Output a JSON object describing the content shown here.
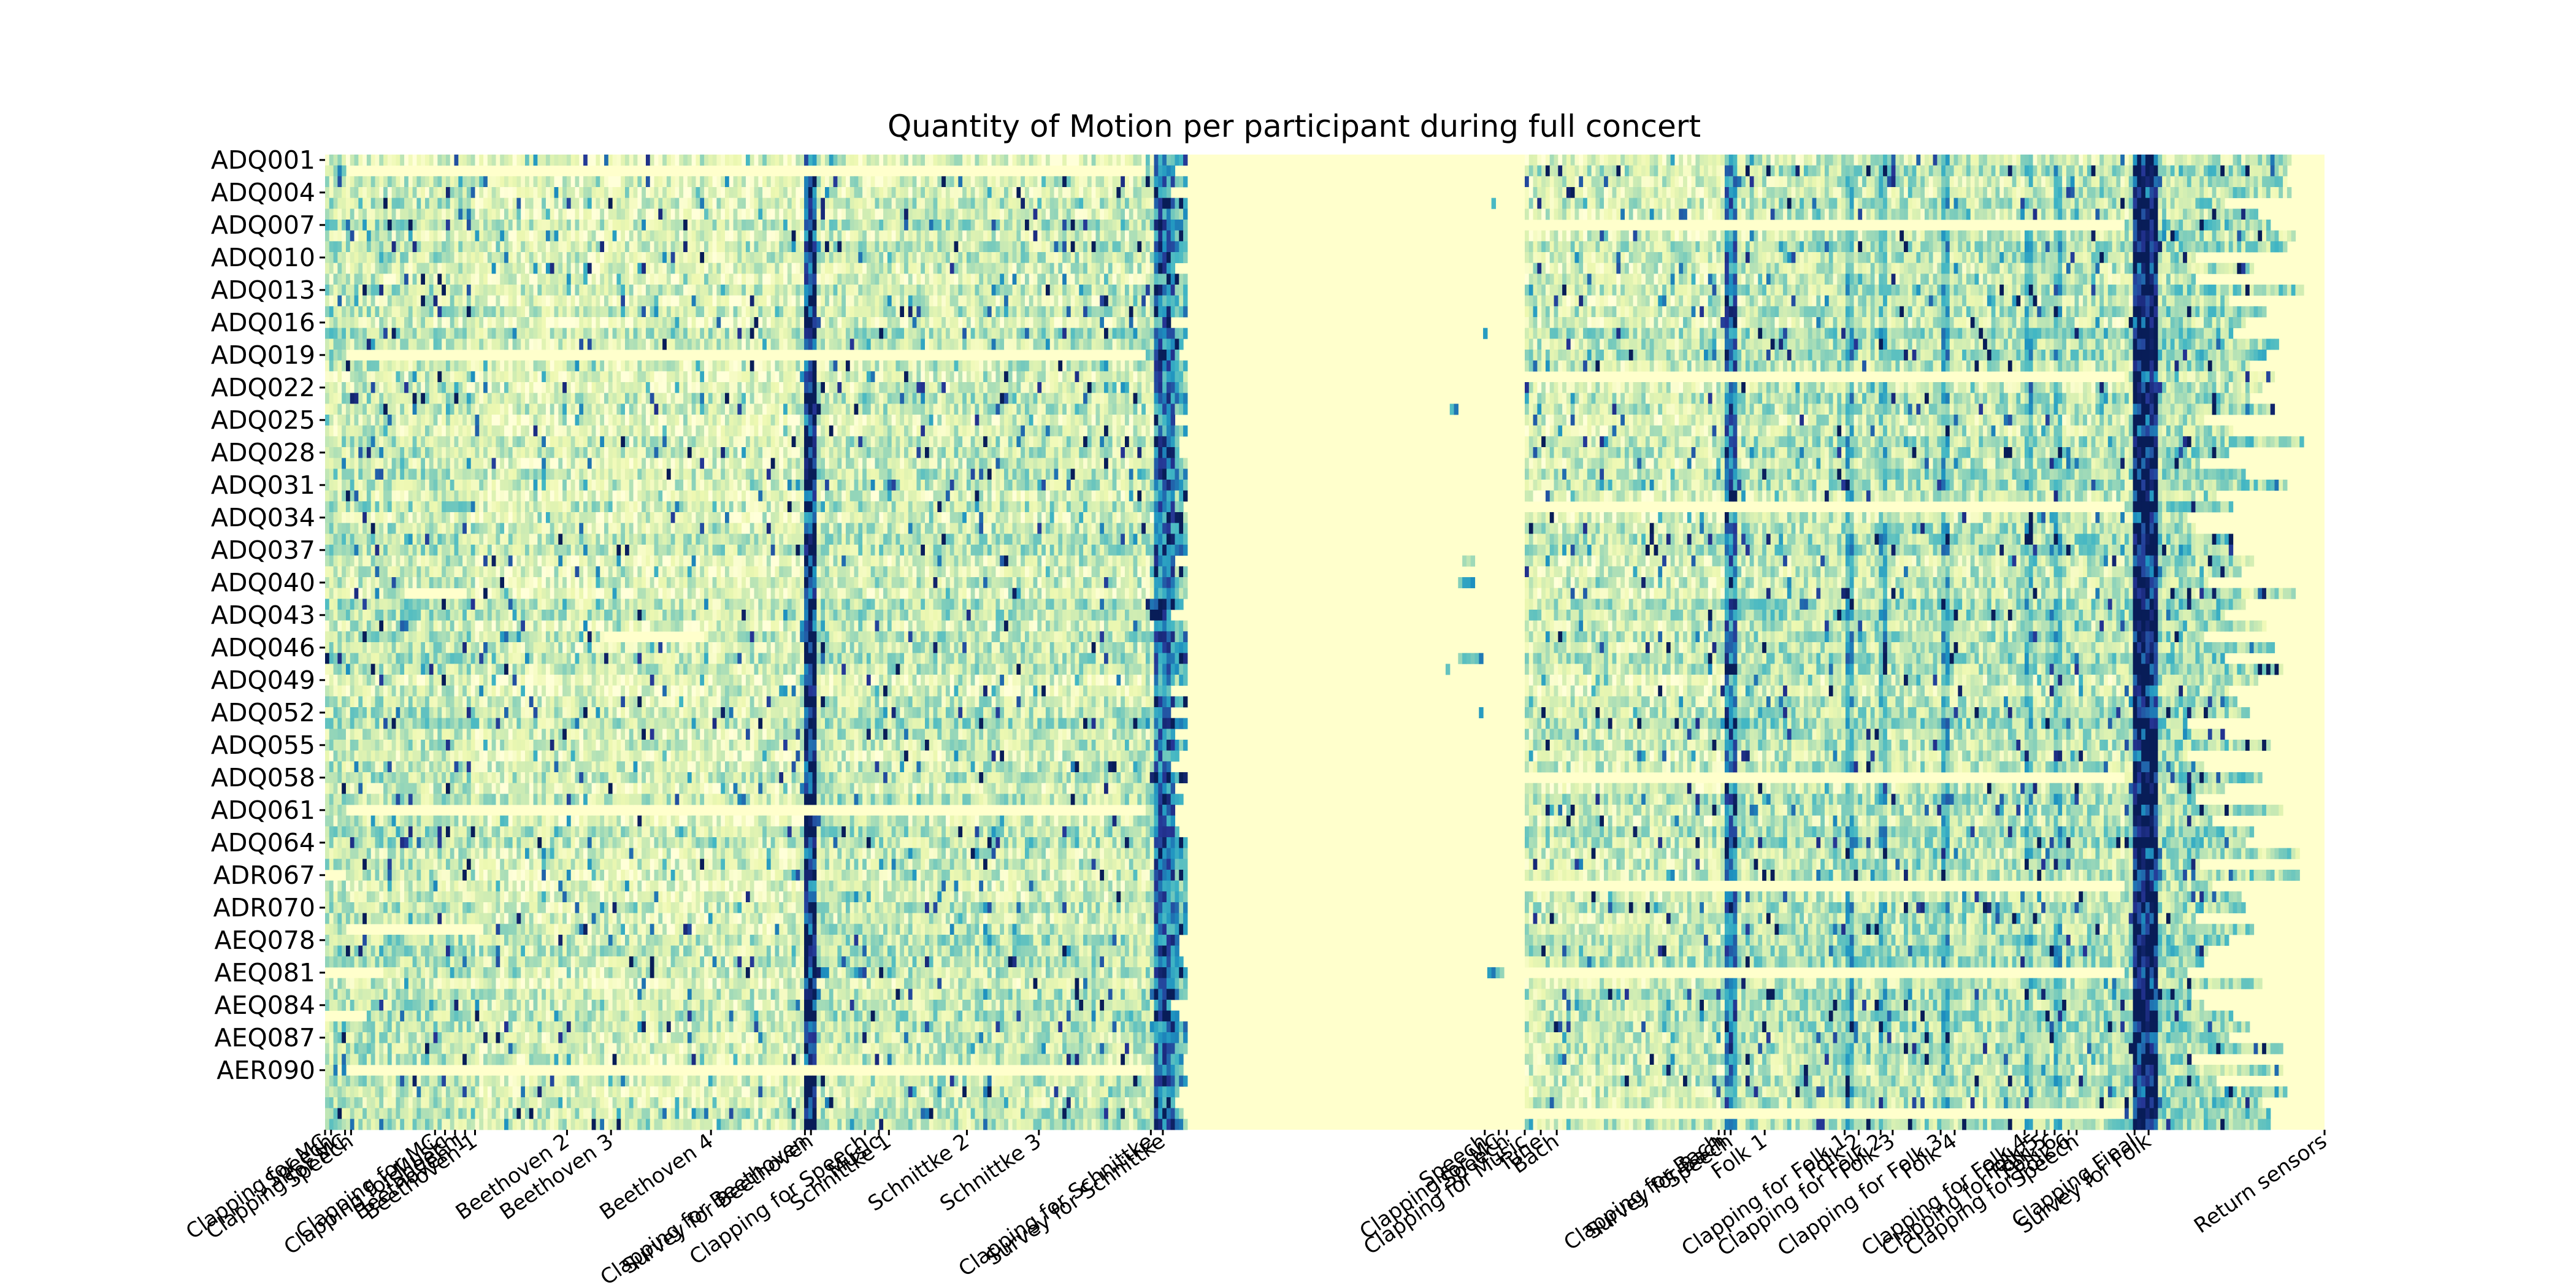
{
  "chart_data": {
    "type": "heatmap",
    "title": "Quantity of Motion per participant during full concert",
    "colormap": "YlGnBu",
    "colors": {
      "low": "#ffffd9",
      "mid": "#7fcdbb",
      "high": "#081d58",
      "missing": "#ffffcc"
    },
    "participant_count": 90,
    "y_tick_labels": [
      "ADQ001",
      "ADQ004",
      "ADQ007",
      "ADQ010",
      "ADQ013",
      "ADQ016",
      "ADQ019",
      "ADQ022",
      "ADQ025",
      "ADQ028",
      "ADQ031",
      "ADQ034",
      "ADQ037",
      "ADQ040",
      "ADQ043",
      "ADQ046",
      "ADQ049",
      "ADQ052",
      "ADQ055",
      "ADQ058",
      "ADQ061",
      "ADQ064",
      "ADR067",
      "ADR070",
      "AEQ078",
      "AEQ081",
      "AEQ084",
      "AEQ087",
      "AER090"
    ],
    "segments": [
      {
        "label": "Clapping for MC",
        "t": 0.0
      },
      {
        "label": "Speech",
        "t": 0.003
      },
      {
        "label": "Clapping for MC",
        "t": 0.01
      },
      {
        "label": "Speech",
        "t": 0.013
      },
      {
        "label": "Clapping for MC",
        "t": 0.055
      },
      {
        "label": "Clapping for Music",
        "t": 0.06
      },
      {
        "label": "Speech",
        "t": 0.065
      },
      {
        "label": "Beethoven 1",
        "t": 0.07
      },
      {
        "label": "Beethoven 1",
        "t": 0.075
      },
      {
        "label": "Beethoven 2",
        "t": 0.121
      },
      {
        "label": "Beethoven 3",
        "t": 0.143
      },
      {
        "label": "Beethoven 4",
        "t": 0.193
      },
      {
        "label": "Clapping for Beethoven",
        "t": 0.24
      },
      {
        "label": "Survey for Beethoven",
        "t": 0.243
      },
      {
        "label": "Clapping for Speech",
        "t": 0.27
      },
      {
        "label": "Music",
        "t": 0.277
      },
      {
        "label": "Schnittke 1",
        "t": 0.282
      },
      {
        "label": "Schnittke 2",
        "t": 0.321
      },
      {
        "label": "Schnittke 3",
        "t": 0.357
      },
      {
        "label": "Clapping for Schnittke",
        "t": 0.413
      },
      {
        "label": "Survey for Schnittke",
        "t": 0.419
      },
      {
        "label": "Speech",
        "t": 0.58
      },
      {
        "label": "Clapping for MC",
        "t": 0.587
      },
      {
        "label": "Speech",
        "t": 0.591
      },
      {
        "label": "Clapping for Music",
        "t": 0.6
      },
      {
        "label": "Tune",
        "t": 0.608
      },
      {
        "label": "Bach",
        "t": 0.616
      },
      {
        "label": "Clapping for Bach",
        "t": 0.697
      },
      {
        "label": "Survey for Bach",
        "t": 0.7
      },
      {
        "label": "Speech",
        "t": 0.703
      },
      {
        "label": "Folk 1",
        "t": 0.72
      },
      {
        "label": "Clapping for Folk 1",
        "t": 0.76
      },
      {
        "label": "Folk 2",
        "t": 0.767
      },
      {
        "label": "Clapping for Folk 2",
        "t": 0.778
      },
      {
        "label": "Folk 3",
        "t": 0.784
      },
      {
        "label": "Clapping for Folk 3",
        "t": 0.808
      },
      {
        "label": "Folk 4",
        "t": 0.815
      },
      {
        "label": "Clapping for Folk 4",
        "t": 0.85
      },
      {
        "label": "Folk 5",
        "t": 0.856
      },
      {
        "label": "Clapping for Folk 5",
        "t": 0.86
      },
      {
        "label": "Folk 6",
        "t": 0.865
      },
      {
        "label": "Clapping for Folk 6",
        "t": 0.872
      },
      {
        "label": "Speech",
        "t": 0.876
      },
      {
        "label": "Clapping Final",
        "t": 0.905
      },
      {
        "label": "Survey for Folk",
        "t": 0.912
      },
      {
        "label": "Return sensors",
        "t": 1.0
      }
    ]
  }
}
